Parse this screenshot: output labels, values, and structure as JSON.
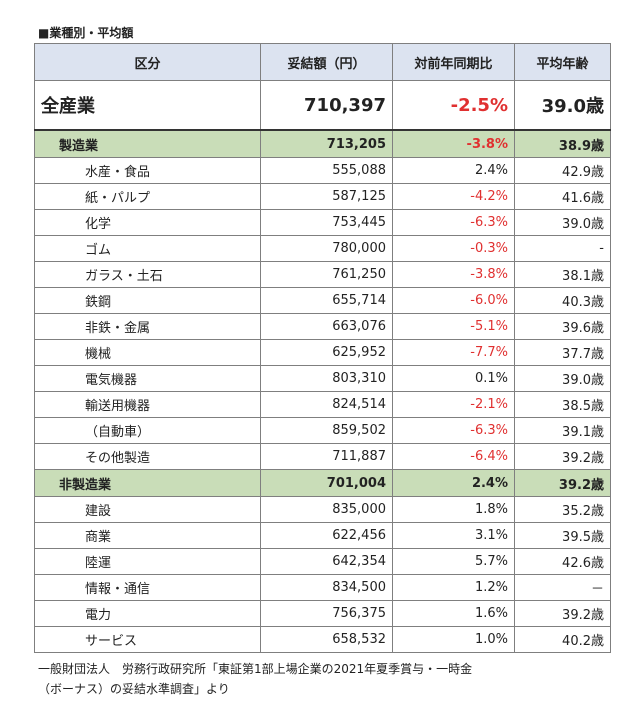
{
  "title": "■業種別・平均額",
  "headers": [
    "区分",
    "妥結額（円）",
    "対前年同期比",
    "平均年齢"
  ],
  "total": {
    "label": "全産業",
    "amount": "710,397",
    "change": "-2.5%",
    "age": "39.0歳",
    "negative": true
  },
  "groups": [
    {
      "label": "製造業",
      "amount": "713,205",
      "change": "-3.8%",
      "age": "38.9歳",
      "negative": true,
      "rows": [
        {
          "label": "水産・食品",
          "amount": "555,088",
          "change": "2.4%",
          "age": "42.9歳",
          "negative": false
        },
        {
          "label": "紙・パルプ",
          "amount": "587,125",
          "change": "-4.2%",
          "age": "41.6歳",
          "negative": true
        },
        {
          "label": "化学",
          "amount": "753,445",
          "change": "-6.3%",
          "age": "39.0歳",
          "negative": true
        },
        {
          "label": "ゴム",
          "amount": "780,000",
          "change": "-0.3%",
          "age": "-",
          "negative": true
        },
        {
          "label": "ガラス・土石",
          "amount": "761,250",
          "change": "-3.8%",
          "age": "38.1歳",
          "negative": true
        },
        {
          "label": "鉄鋼",
          "amount": "655,714",
          "change": "-6.0%",
          "age": "40.3歳",
          "negative": true
        },
        {
          "label": "非鉄・金属",
          "amount": "663,076",
          "change": "-5.1%",
          "age": "39.6歳",
          "negative": true
        },
        {
          "label": "機械",
          "amount": "625,952",
          "change": "-7.7%",
          "age": "37.7歳",
          "negative": true
        },
        {
          "label": "電気機器",
          "amount": "803,310",
          "change": "0.1%",
          "age": "39.0歳",
          "negative": false
        },
        {
          "label": "輸送用機器",
          "amount": "824,514",
          "change": "-2.1%",
          "age": "38.5歳",
          "negative": true
        },
        {
          "label": "（自動車）",
          "amount": "859,502",
          "change": "-6.3%",
          "age": "39.1歳",
          "negative": true
        },
        {
          "label": "その他製造",
          "amount": "711,887",
          "change": "-6.4%",
          "age": "39.2歳",
          "negative": true
        }
      ]
    },
    {
      "label": "非製造業",
      "amount": "701,004",
      "change": "2.4%",
      "age": "39.2歳",
      "negative": false,
      "rows": [
        {
          "label": "建設",
          "amount": "835,000",
          "change": "1.8%",
          "age": "35.2歳",
          "negative": false
        },
        {
          "label": "商業",
          "amount": "622,456",
          "change": "3.1%",
          "age": "39.5歳",
          "negative": false
        },
        {
          "label": "陸運",
          "amount": "642,354",
          "change": "5.7%",
          "age": "42.6歳",
          "negative": false
        },
        {
          "label": "情報・通信",
          "amount": "834,500",
          "change": "1.2%",
          "age": "－",
          "negative": false
        },
        {
          "label": "電力",
          "amount": "756,375",
          "change": "1.6%",
          "age": "39.2歳",
          "negative": false
        },
        {
          "label": "サービス",
          "amount": "658,532",
          "change": "1.0%",
          "age": "40.2歳",
          "negative": false
        }
      ]
    }
  ],
  "note": {
    "line1": "一般財団法人　労務行政研究所「東証第1部上場企業の2021年夏季賞与・一時金",
    "line2": "（ボーナス）の妥結水準調査」より"
  },
  "colors": {
    "header_bg": "#dce3f0",
    "group_bg": "#c9ddb8",
    "negative": "#e03030"
  }
}
